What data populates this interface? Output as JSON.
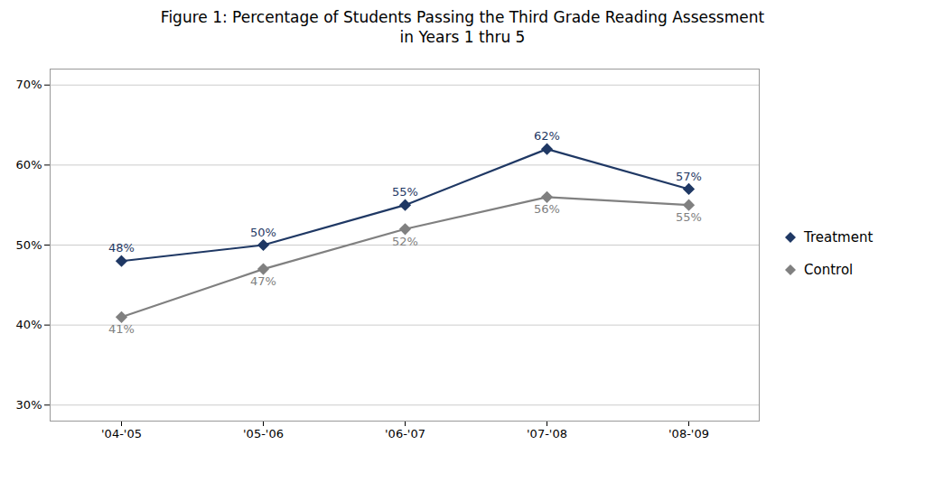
{
  "chart_data": {
    "type": "line",
    "title": "Figure 1: Percentage of Students Passing the Third Grade Reading Assessment\nin Years 1 thru 5",
    "categories": [
      "'04-'05",
      "'05-'06",
      "'06-'07",
      "'07-'08",
      "'08-'09"
    ],
    "series": [
      {
        "name": "Treatment",
        "color": "#1F3864",
        "values": [
          0.48,
          0.5,
          0.55,
          0.62,
          0.57
        ],
        "value_labels": [
          "48%",
          "50%",
          "55%",
          "62%",
          "57%"
        ]
      },
      {
        "name": "Control",
        "color": "#808080",
        "values": [
          0.41,
          0.47,
          0.52,
          0.56,
          0.55
        ],
        "value_labels": [
          "41%",
          "47%",
          "52%",
          "56%",
          "55%"
        ]
      }
    ],
    "ylim": [
      0.28,
      0.72
    ],
    "yticks": [
      {
        "value": 0.3,
        "label": "30%"
      },
      {
        "value": 0.4,
        "label": "40%"
      },
      {
        "value": 0.5,
        "label": "50%"
      },
      {
        "value": 0.6,
        "label": "60%"
      },
      {
        "value": 0.7,
        "label": "70%"
      }
    ],
    "grid": true,
    "legend": "right",
    "data_labels": true,
    "marker": "diamond"
  }
}
